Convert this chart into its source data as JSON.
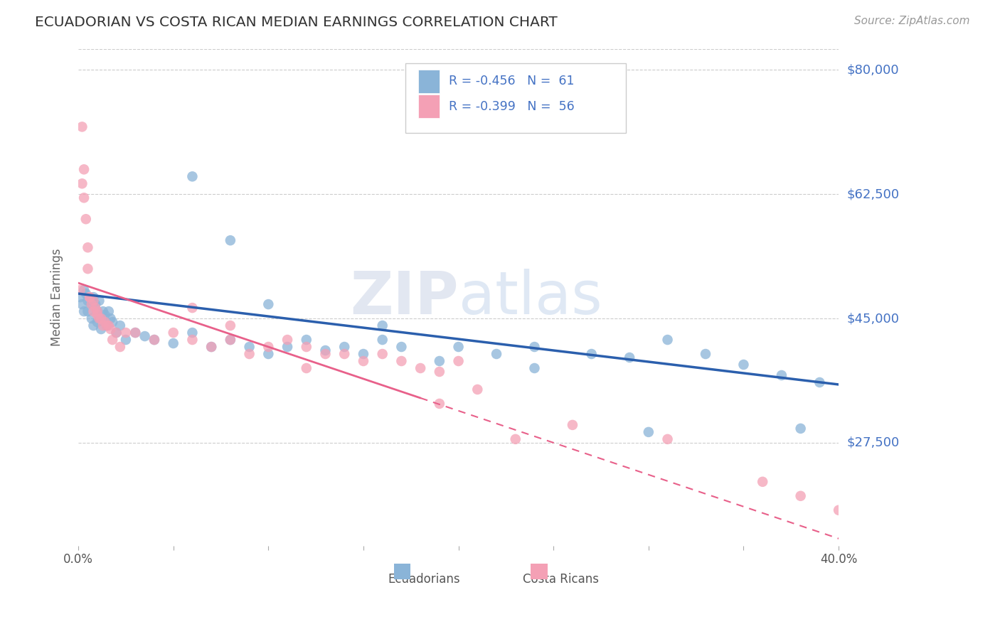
{
  "title": "ECUADORIAN VS COSTA RICAN MEDIAN EARNINGS CORRELATION CHART",
  "source": "Source: ZipAtlas.com",
  "ylabel": "Median Earnings",
  "xmin": 0.0,
  "xmax": 0.4,
  "ymin": 13000,
  "ymax": 83000,
  "yticks": [
    27500,
    45000,
    62500,
    80000
  ],
  "ytick_labels": [
    "$27,500",
    "$45,000",
    "$62,500",
    "$80,000"
  ],
  "xticks": [
    0.0,
    0.05,
    0.1,
    0.15,
    0.2,
    0.25,
    0.3,
    0.35,
    0.4
  ],
  "xtick_labels": [
    "0.0%",
    "",
    "",
    "",
    "",
    "",
    "",
    "",
    "40.0%"
  ],
  "blue_color": "#8ab4d8",
  "pink_color": "#f4a0b5",
  "blue_line_color": "#2b5fad",
  "pink_line_color": "#e8608a",
  "axis_color": "#4472c4",
  "label1": "Ecuadorians",
  "label2": "Costa Ricans",
  "blue_regression_intercept": 48500,
  "blue_regression_slope": -32000,
  "pink_regression_intercept": 50000,
  "pink_regression_slope": -90000,
  "blue_points_x": [
    0.001,
    0.002,
    0.003,
    0.003,
    0.004,
    0.005,
    0.005,
    0.006,
    0.007,
    0.007,
    0.008,
    0.008,
    0.009,
    0.01,
    0.01,
    0.011,
    0.012,
    0.012,
    0.013,
    0.014,
    0.015,
    0.016,
    0.017,
    0.018,
    0.02,
    0.022,
    0.025,
    0.03,
    0.035,
    0.04,
    0.05,
    0.06,
    0.07,
    0.08,
    0.09,
    0.1,
    0.11,
    0.12,
    0.13,
    0.14,
    0.15,
    0.16,
    0.17,
    0.19,
    0.2,
    0.22,
    0.24,
    0.27,
    0.29,
    0.31,
    0.33,
    0.35,
    0.37,
    0.39,
    0.06,
    0.08,
    0.1,
    0.16,
    0.24,
    0.3,
    0.38
  ],
  "blue_points_y": [
    48000,
    47000,
    49000,
    46000,
    48500,
    47500,
    46000,
    48000,
    47000,
    45000,
    48000,
    44000,
    47000,
    46000,
    44500,
    47500,
    45000,
    43500,
    46000,
    45500,
    44000,
    46000,
    45000,
    44500,
    43000,
    44000,
    42000,
    43000,
    42500,
    42000,
    41500,
    43000,
    41000,
    42000,
    41000,
    40000,
    41000,
    42000,
    40500,
    41000,
    40000,
    42000,
    41000,
    39000,
    41000,
    40000,
    41000,
    40000,
    39500,
    42000,
    40000,
    38500,
    37000,
    36000,
    65000,
    56000,
    47000,
    44000,
    38000,
    29000,
    29500
  ],
  "pink_points_x": [
    0.001,
    0.002,
    0.002,
    0.003,
    0.003,
    0.004,
    0.005,
    0.005,
    0.006,
    0.006,
    0.007,
    0.008,
    0.008,
    0.009,
    0.01,
    0.01,
    0.011,
    0.012,
    0.013,
    0.014,
    0.015,
    0.016,
    0.017,
    0.018,
    0.02,
    0.022,
    0.025,
    0.03,
    0.04,
    0.05,
    0.06,
    0.07,
    0.08,
    0.09,
    0.1,
    0.11,
    0.12,
    0.13,
    0.14,
    0.15,
    0.16,
    0.17,
    0.18,
    0.19,
    0.2,
    0.06,
    0.08,
    0.12,
    0.19,
    0.21,
    0.23,
    0.26,
    0.31,
    0.36,
    0.38,
    0.4
  ],
  "pink_points_y": [
    49000,
    72000,
    64000,
    66000,
    62000,
    59000,
    52000,
    55000,
    48000,
    48000,
    47000,
    47500,
    46000,
    46500,
    46000,
    45500,
    45000,
    45000,
    44000,
    44500,
    44000,
    44000,
    43500,
    42000,
    43000,
    41000,
    43000,
    43000,
    42000,
    43000,
    42000,
    41000,
    42000,
    40000,
    41000,
    42000,
    41000,
    40000,
    40000,
    39000,
    40000,
    39000,
    38000,
    37500,
    39000,
    46500,
    44000,
    38000,
    33000,
    35000,
    28000,
    30000,
    28000,
    22000,
    20000,
    18000
  ]
}
